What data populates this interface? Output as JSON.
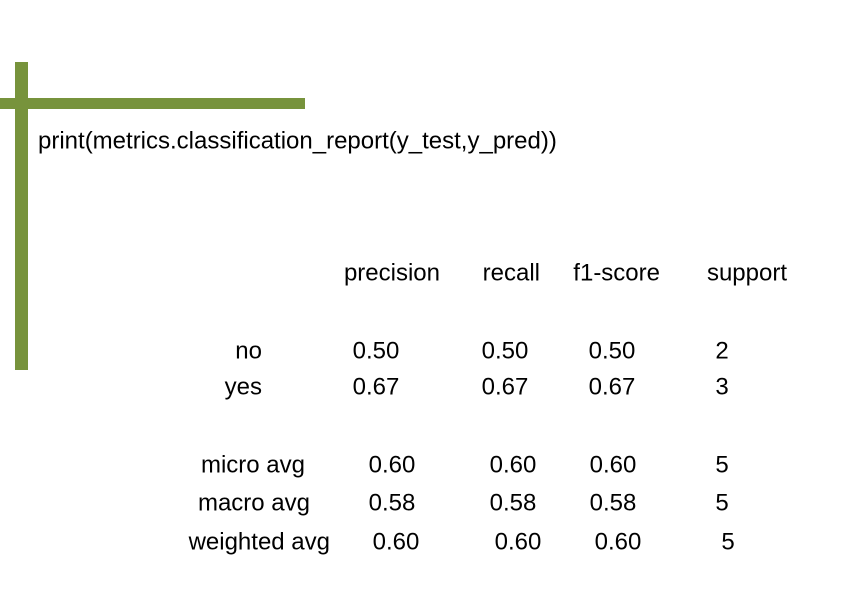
{
  "code": "print(metrics.classification_report(y_test,y_pred))",
  "table": {
    "header": [
      "precision",
      "recall",
      "f1-score",
      "support"
    ],
    "rows": [
      [
        "no",
        "0.50",
        "0.50",
        "0.50",
        "2"
      ],
      [
        "yes",
        "0.67",
        "0.67",
        "0.67",
        "3"
      ],
      [
        "micro avg",
        "0.60",
        "0.60",
        "0.60",
        "5"
      ],
      [
        "macro avg",
        "0.58",
        "0.58",
        "0.58",
        "5"
      ],
      [
        "weighted avg",
        "0.60",
        "0.60",
        "0.60",
        "5"
      ]
    ]
  }
}
